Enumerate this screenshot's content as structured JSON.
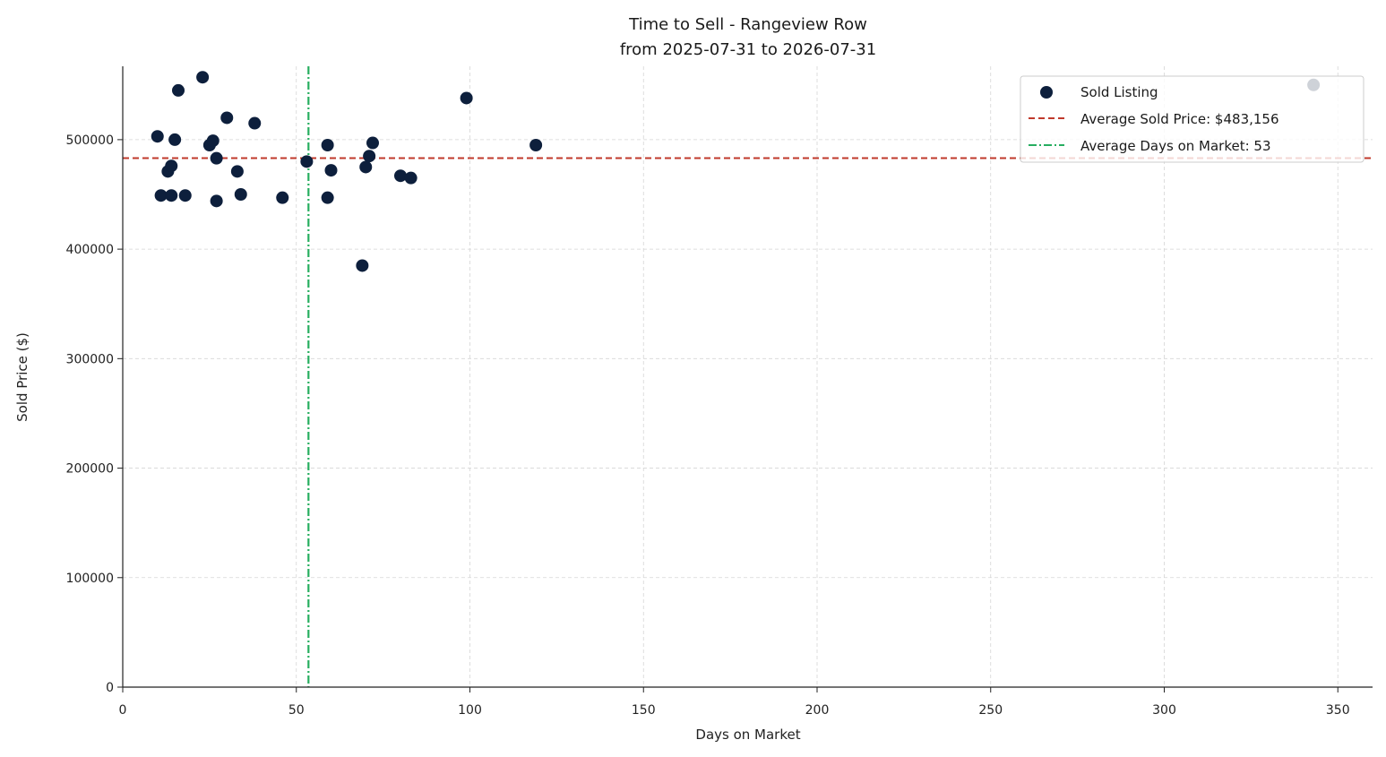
{
  "chart_data": {
    "type": "scatter",
    "title": "Time to Sell - Rangeview Row",
    "subtitle": "from 2025-07-31 to 2026-07-31",
    "xlabel": "Days on Market",
    "ylabel": "Sold Price ($)",
    "xlim": [
      0,
      360
    ],
    "ylim": [
      0,
      567000
    ],
    "x_ticks": [
      0,
      50,
      100,
      150,
      200,
      250,
      300,
      350
    ],
    "y_ticks": [
      0,
      100000,
      200000,
      300000,
      400000,
      500000
    ],
    "grid": true,
    "legend_position": "top-right",
    "colors": {
      "points": "#0d1f3c",
      "avg_price_line": "#c0392b",
      "avg_days_line": "#27ae60",
      "grid": "#d5d5d5",
      "axis": "#222222"
    },
    "series": [
      {
        "name": "Sold Listing",
        "points": [
          {
            "x": 10,
            "y": 503000
          },
          {
            "x": 11,
            "y": 449000
          },
          {
            "x": 13,
            "y": 471000
          },
          {
            "x": 14,
            "y": 449000
          },
          {
            "x": 14,
            "y": 476000
          },
          {
            "x": 15,
            "y": 500000
          },
          {
            "x": 16,
            "y": 545000
          },
          {
            "x": 18,
            "y": 449000
          },
          {
            "x": 23,
            "y": 557000
          },
          {
            "x": 25,
            "y": 495000
          },
          {
            "x": 26,
            "y": 499000
          },
          {
            "x": 27,
            "y": 483000
          },
          {
            "x": 27,
            "y": 444000
          },
          {
            "x": 30,
            "y": 520000
          },
          {
            "x": 33,
            "y": 471000
          },
          {
            "x": 34,
            "y": 450000
          },
          {
            "x": 38,
            "y": 515000
          },
          {
            "x": 46,
            "y": 447000
          },
          {
            "x": 53,
            "y": 480000
          },
          {
            "x": 59,
            "y": 495000
          },
          {
            "x": 59,
            "y": 447000
          },
          {
            "x": 60,
            "y": 472000
          },
          {
            "x": 69,
            "y": 385000
          },
          {
            "x": 70,
            "y": 475000
          },
          {
            "x": 71,
            "y": 485000
          },
          {
            "x": 72,
            "y": 497000
          },
          {
            "x": 80,
            "y": 467000
          },
          {
            "x": 83,
            "y": 465000
          },
          {
            "x": 99,
            "y": 538000
          },
          {
            "x": 119,
            "y": 495000
          },
          {
            "x": 343,
            "y": 550000
          }
        ]
      },
      {
        "name": "Average Sold Price: $483,156",
        "kind": "hline",
        "value": 483156
      },
      {
        "name": "Average Days on Market: 53",
        "kind": "vline",
        "value": 53.5
      }
    ]
  }
}
